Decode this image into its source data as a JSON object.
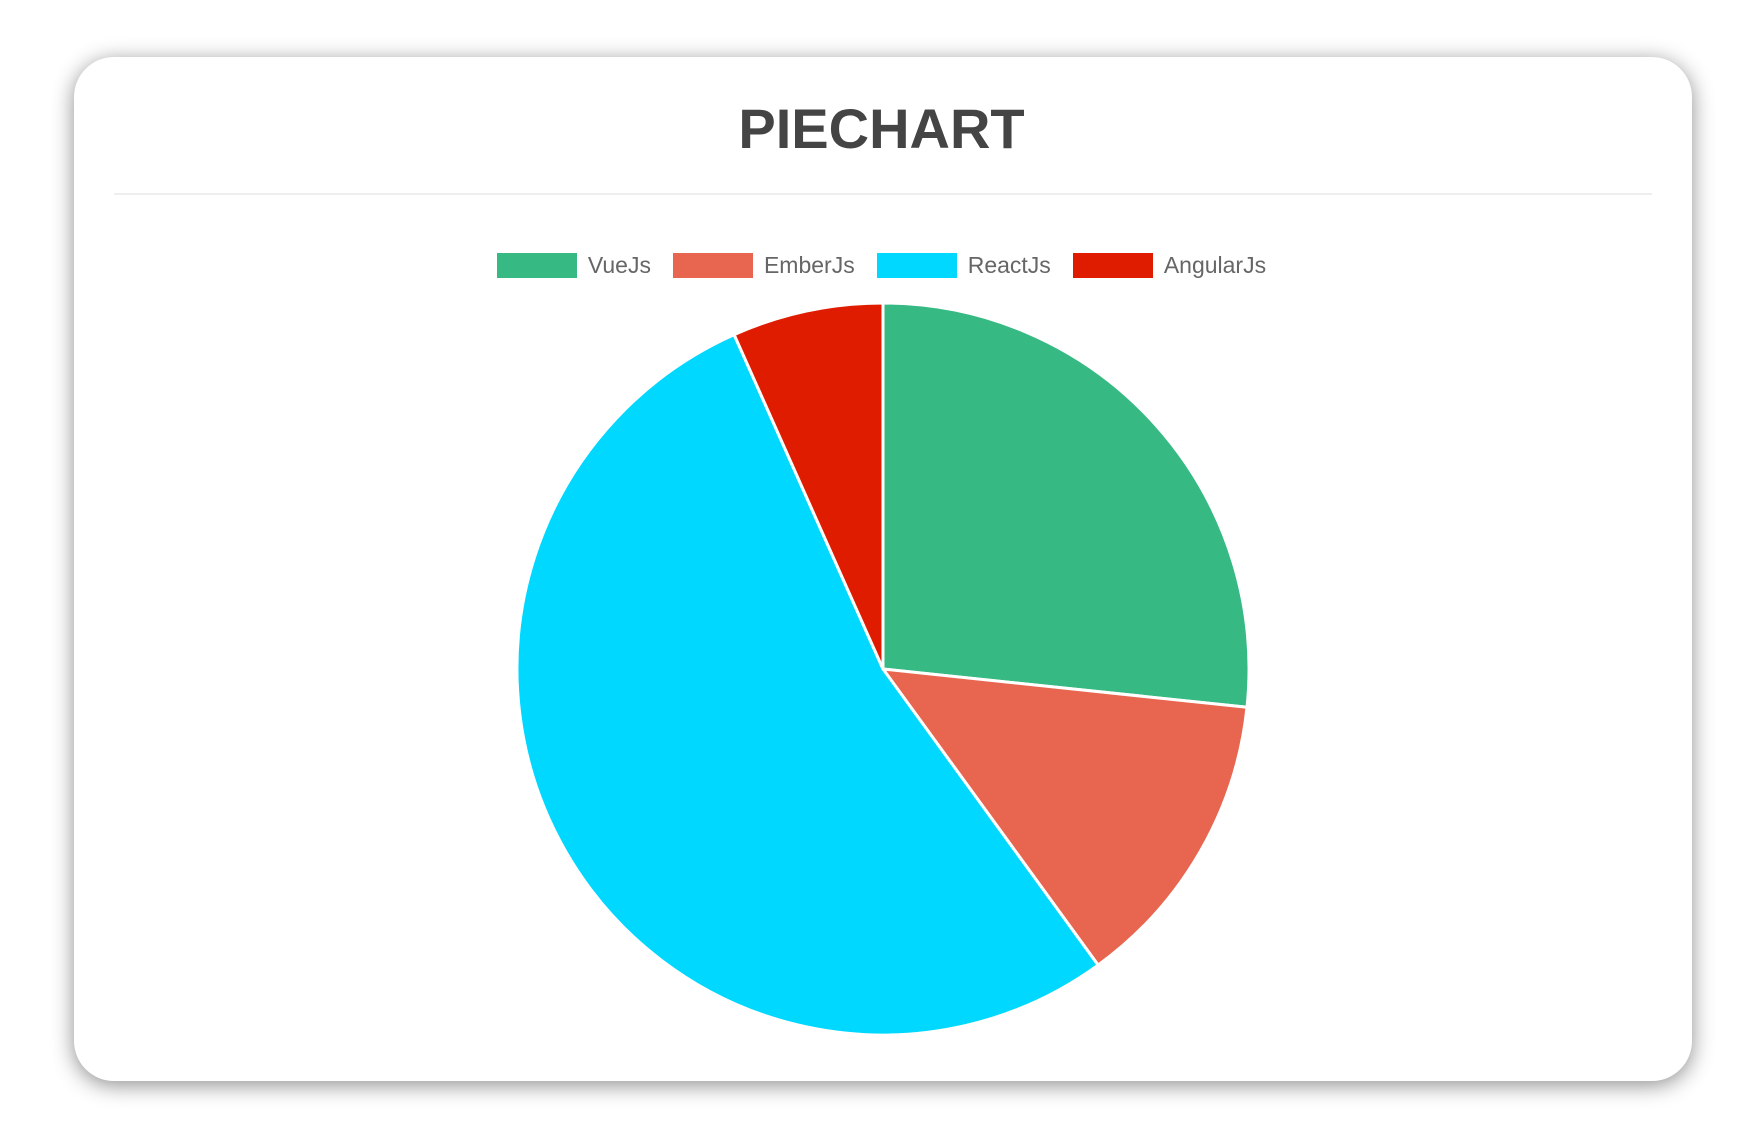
{
  "chart_data": {
    "type": "pie",
    "title": "PIECHART",
    "categories": [
      "VueJs",
      "EmberJs",
      "ReactJs",
      "AngularJs"
    ],
    "values": [
      40,
      20,
      80,
      10
    ],
    "colors": [
      "#36b982",
      "#e8664f",
      "#00d8ff",
      "#e01c00"
    ],
    "legend_position": "top"
  }
}
